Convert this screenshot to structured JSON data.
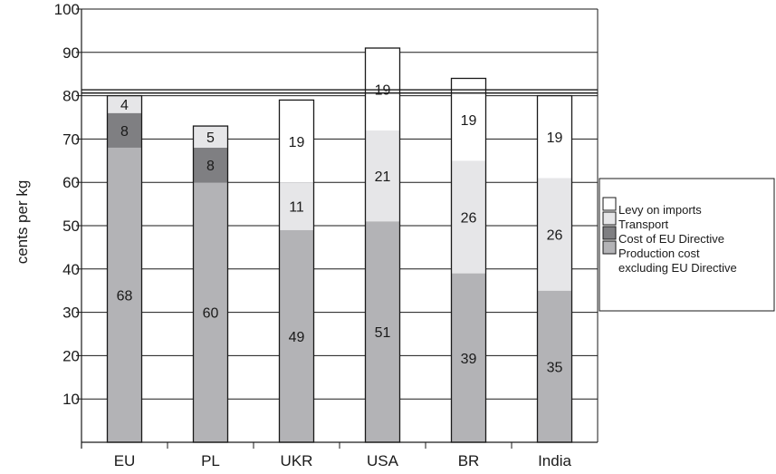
{
  "chart_data": {
    "type": "bar",
    "stacked": true,
    "title": "",
    "xlabel": "",
    "ylabel": "cents per kg",
    "ylim": [
      0,
      100
    ],
    "yticks": [
      10,
      20,
      30,
      40,
      50,
      60,
      70,
      80,
      90,
      100
    ],
    "categories": [
      "EU",
      "PL",
      "UKR",
      "USA",
      "BR",
      "India"
    ],
    "series": [
      {
        "name": "Production cost excluding EU Directive",
        "legend_lines": [
          "Production cost",
          "excluding EU Directive"
        ],
        "color": "#b3b3b6",
        "values": [
          68,
          60,
          49,
          51,
          39,
          35
        ],
        "labels": [
          "68",
          "60",
          "49",
          "51",
          "39",
          "35"
        ]
      },
      {
        "name": "Cost of EU Directive",
        "legend_lines": [
          "Cost of EU Directive"
        ],
        "color": "#7f7f82",
        "values": [
          8,
          8,
          0,
          0,
          0,
          0
        ],
        "labels": [
          "8",
          "8",
          "",
          "",
          "",
          ""
        ]
      },
      {
        "name": "Transport",
        "legend_lines": [
          "Transport"
        ],
        "color": "#e6e6e8",
        "values": [
          4,
          5,
          11,
          21,
          26,
          26
        ],
        "labels": [
          "4",
          "5",
          "11",
          "21",
          "26",
          "26"
        ]
      },
      {
        "name": "Levy on imports",
        "legend_lines": [
          "Levy on imports"
        ],
        "color": "#ffffff",
        "values": [
          0,
          0,
          19,
          19,
          19,
          19
        ],
        "labels": [
          "",
          "",
          "19",
          "19",
          "19",
          "19"
        ]
      }
    ],
    "reference_line": 81,
    "legend_position": "right",
    "grid": true
  }
}
